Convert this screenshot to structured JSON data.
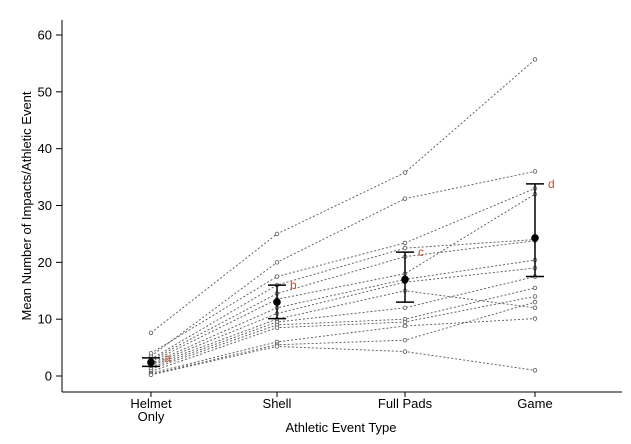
{
  "chart_data": {
    "type": "scatter",
    "title": "",
    "xlabel": "Athletic Event Type",
    "ylabel": "Mean Number of Impacts/Athletic Event",
    "categories": [
      "Helmet\nOnly",
      "Shell",
      "Full Pads",
      "Game"
    ],
    "ylim": [
      0,
      62
    ],
    "yticks": [
      0,
      10,
      20,
      30,
      40,
      50,
      60
    ],
    "grid": false,
    "legend": "none",
    "colors": {
      "individual": "#555555",
      "mean": "#000000",
      "letters": "#d24a1e"
    },
    "individuals": [
      [
        7.6,
        25.0,
        35.8,
        55.7
      ],
      [
        3.5,
        20.0,
        31.2,
        36.0
      ],
      [
        4.0,
        17.5,
        23.4,
        33.0
      ],
      [
        3.0,
        16.0,
        22.5,
        24.0
      ],
      [
        2.8,
        14.5,
        21.0,
        23.8
      ],
      [
        2.5,
        13.5,
        18.0,
        32.0
      ],
      [
        2.2,
        12.0,
        17.0,
        20.4
      ],
      [
        2.0,
        11.0,
        16.5,
        19.0
      ],
      [
        1.8,
        10.0,
        15.0,
        12.0
      ],
      [
        1.5,
        9.5,
        12.0,
        17.5
      ],
      [
        1.2,
        9.0,
        10.0,
        15.5
      ],
      [
        0.8,
        8.5,
        9.5,
        14.0
      ],
      [
        0.5,
        6.0,
        8.8,
        10.1
      ],
      [
        0.3,
        5.5,
        6.3,
        13.0
      ],
      [
        0.2,
        5.2,
        4.3,
        1.0
      ]
    ],
    "means": [
      2.4,
      13.0,
      17.0,
      24.3
    ],
    "error_low": [
      1.7,
      10.1,
      13.0,
      17.5
    ],
    "error_high": [
      3.2,
      16.0,
      21.8,
      33.8
    ],
    "significance_letters": [
      "a",
      "b",
      "c",
      "d"
    ]
  }
}
